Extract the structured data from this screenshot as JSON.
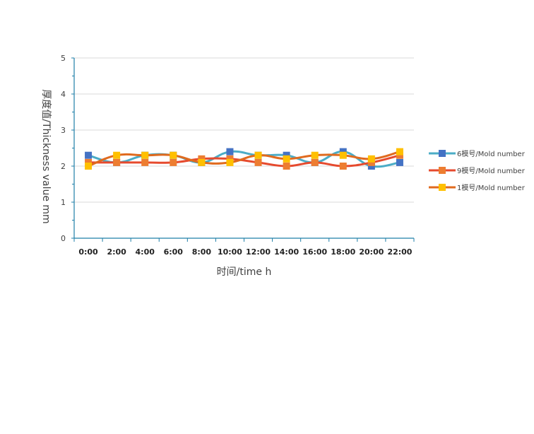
{
  "chart_data": {
    "type": "line",
    "title": "",
    "xlabel": "时间/time  h",
    "ylabel": "厚度值/Thickness value mm",
    "categories": [
      "0:00",
      "2:00",
      "4:00",
      "6:00",
      "8:00",
      "10:00",
      "12:00",
      "14:00",
      "16:00",
      "18:00",
      "20:00",
      "22:00"
    ],
    "yticks": [
      "0",
      "1",
      "2",
      "3",
      "4",
      "5"
    ],
    "ylim": [
      0,
      5
    ],
    "grid": true,
    "legend_position": "right",
    "series": [
      {
        "name": "6模号/Mold number",
        "line_color": "#4bacc6",
        "marker_color": "#4472c4",
        "values": [
          2.3,
          2.1,
          2.3,
          2.3,
          2.1,
          2.4,
          2.3,
          2.3,
          2.1,
          2.4,
          2.0,
          2.1
        ]
      },
      {
        "name": "9模号/Mold number",
        "line_color": "#e64a2e",
        "marker_color": "#ed7d31",
        "values": [
          2.1,
          2.1,
          2.1,
          2.1,
          2.2,
          2.2,
          2.1,
          2.0,
          2.1,
          2.0,
          2.1,
          2.3
        ]
      },
      {
        "name": "1模号/Mold number",
        "line_color": "#e06a1e",
        "marker_color": "#ffc000",
        "values": [
          2.0,
          2.3,
          2.3,
          2.3,
          2.1,
          2.1,
          2.3,
          2.2,
          2.3,
          2.3,
          2.2,
          2.4
        ]
      }
    ]
  }
}
